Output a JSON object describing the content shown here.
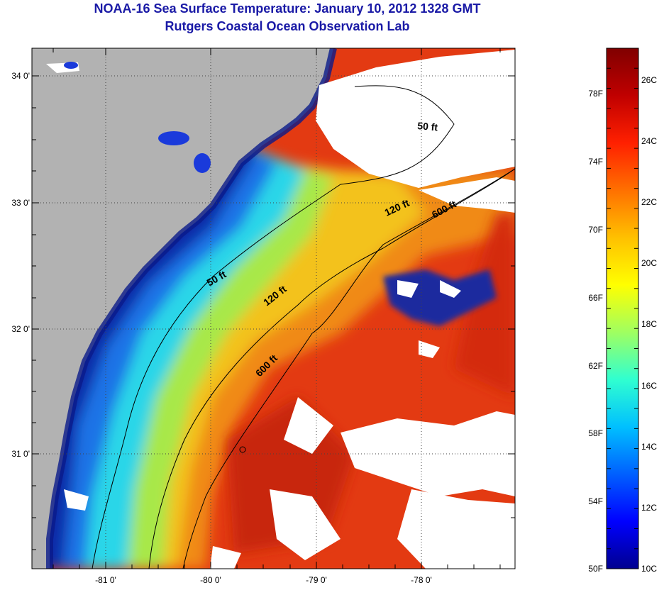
{
  "title": {
    "line1": "NOAA-16 Sea Surface Temperature:  January 10, 2012 1328 GMT",
    "line2": "Rutgers Coastal Ocean Observation Lab"
  },
  "map": {
    "lon_ticks": [
      "-81 0'",
      "-80 0'",
      "-79 0'",
      "-78 0'"
    ],
    "lat_ticks": [
      "34 0'",
      "33 0'",
      "32 0'",
      "31 0'"
    ],
    "contour_labels": [
      "50 ft",
      "120 ft",
      "600 ft",
      "50 ft",
      "120 ft",
      "600 ft"
    ],
    "colors": {
      "land": "#b2b2b2",
      "cloud": "#ffffff",
      "cold": "#0a2aa8",
      "cool": "#2bd6e8",
      "mid": "#f1e22a",
      "warm": "#f08a14",
      "hot": "#e33a12"
    }
  },
  "colorbar": {
    "f_labels": [
      "78F",
      "74F",
      "70F",
      "66F",
      "62F",
      "58F",
      "54F",
      "50F"
    ],
    "c_labels": [
      "26C",
      "24C",
      "22C",
      "20C",
      "18C",
      "16C",
      "14C",
      "12C",
      "10C"
    ],
    "stops": [
      "#00008f",
      "#0000ff",
      "#0060ff",
      "#00c0ff",
      "#30ffd0",
      "#a0ff60",
      "#ffff00",
      "#ffc000",
      "#ff7000",
      "#ff2000",
      "#c00000",
      "#800000"
    ]
  }
}
